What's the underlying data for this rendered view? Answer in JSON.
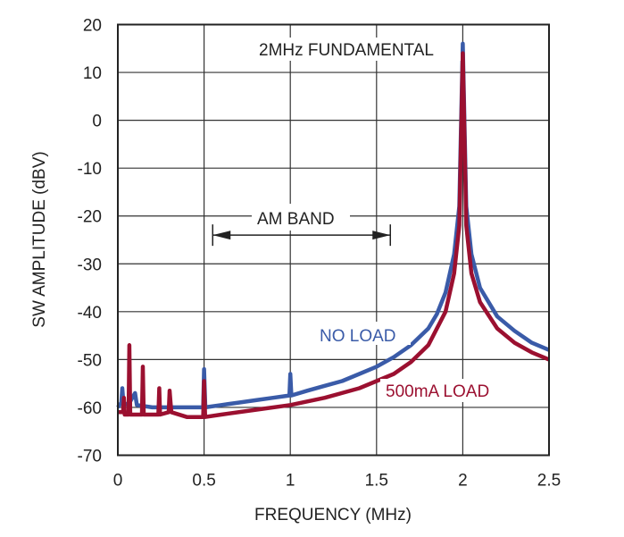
{
  "chart_data": {
    "type": "line",
    "xlabel": "FREQUENCY (MHz)",
    "ylabel": "SW AMPLITUDE (dBV)",
    "xlim": [
      0,
      2.5
    ],
    "ylim": [
      -70,
      20
    ],
    "xticks": [
      0,
      0.5,
      1,
      1.5,
      2,
      2.5
    ],
    "xtick_labels": [
      "0",
      "0.5",
      "1",
      "1.5",
      "2",
      "2.5"
    ],
    "yticks": [
      20,
      10,
      0,
      -10,
      -20,
      -30,
      -40,
      -50,
      -60,
      -70
    ],
    "ytick_labels": [
      "20",
      "10",
      "0",
      "-10",
      "-20",
      "-30",
      "-40",
      "-50",
      "-60",
      "-70"
    ],
    "grid": true,
    "series": [
      {
        "name": "NO LOAD",
        "color": "#3a5ba8",
        "points": [
          [
            0,
            -60
          ],
          [
            0.02,
            -59
          ],
          [
            0.026,
            -56
          ],
          [
            0.032,
            -59
          ],
          [
            0.06,
            -59.5
          ],
          [
            0.1,
            -57
          ],
          [
            0.11,
            -59.5
          ],
          [
            0.2,
            -60
          ],
          [
            0.3,
            -60
          ],
          [
            0.4,
            -60
          ],
          [
            0.495,
            -60
          ],
          [
            0.5,
            -52
          ],
          [
            0.507,
            -60
          ],
          [
            0.6,
            -59.5
          ],
          [
            0.7,
            -59
          ],
          [
            0.8,
            -58.5
          ],
          [
            0.9,
            -58
          ],
          [
            0.995,
            -57.5
          ],
          [
            1.0,
            -53
          ],
          [
            1.006,
            -57.5
          ],
          [
            1.1,
            -56.5
          ],
          [
            1.2,
            -55.5
          ],
          [
            1.3,
            -54.5
          ],
          [
            1.4,
            -53
          ],
          [
            1.5,
            -51.5
          ],
          [
            1.6,
            -49.5
          ],
          [
            1.7,
            -47
          ],
          [
            1.8,
            -43.5
          ],
          [
            1.85,
            -40.5
          ],
          [
            1.9,
            -36
          ],
          [
            1.95,
            -28
          ],
          [
            1.98,
            -18
          ],
          [
            2.0,
            16
          ],
          [
            2.02,
            -18
          ],
          [
            2.05,
            -28
          ],
          [
            2.1,
            -35
          ],
          [
            2.2,
            -41
          ],
          [
            2.3,
            -44
          ],
          [
            2.4,
            -46.5
          ],
          [
            2.5,
            -48
          ]
        ]
      },
      {
        "name": "500mA LOAD",
        "color": "#9b1030",
        "points": [
          [
            0,
            -61
          ],
          [
            0.03,
            -61
          ],
          [
            0.035,
            -58
          ],
          [
            0.04,
            -61.5
          ],
          [
            0.062,
            -61.5
          ],
          [
            0.067,
            -47
          ],
          [
            0.072,
            -61.5
          ],
          [
            0.14,
            -61.5
          ],
          [
            0.145,
            -51.5
          ],
          [
            0.15,
            -61.5
          ],
          [
            0.235,
            -61.5
          ],
          [
            0.24,
            -56
          ],
          [
            0.245,
            -61.5
          ],
          [
            0.295,
            -61
          ],
          [
            0.3,
            -56.5
          ],
          [
            0.31,
            -61
          ],
          [
            0.4,
            -62
          ],
          [
            0.495,
            -62
          ],
          [
            0.5,
            -54.5
          ],
          [
            0.506,
            -62
          ],
          [
            0.6,
            -61.5
          ],
          [
            0.8,
            -60.5
          ],
          [
            1.0,
            -59.5
          ],
          [
            1.2,
            -58
          ],
          [
            1.4,
            -56
          ],
          [
            1.5,
            -54.5
          ],
          [
            1.6,
            -53
          ],
          [
            1.7,
            -50.5
          ],
          [
            1.8,
            -47
          ],
          [
            1.9,
            -40
          ],
          [
            1.95,
            -32
          ],
          [
            1.98,
            -22
          ],
          [
            2.0,
            14
          ],
          [
            2.02,
            -22
          ],
          [
            2.05,
            -32
          ],
          [
            2.1,
            -38
          ],
          [
            2.2,
            -43.5
          ],
          [
            2.3,
            -46.5
          ],
          [
            2.4,
            -48.5
          ],
          [
            2.5,
            -50
          ]
        ]
      }
    ],
    "annotations": {
      "fundamental": "2MHz FUNDAMENTAL",
      "am_band": "AM BAND",
      "am_band_range": [
        0.55,
        1.58
      ],
      "am_band_level": -24
    }
  }
}
